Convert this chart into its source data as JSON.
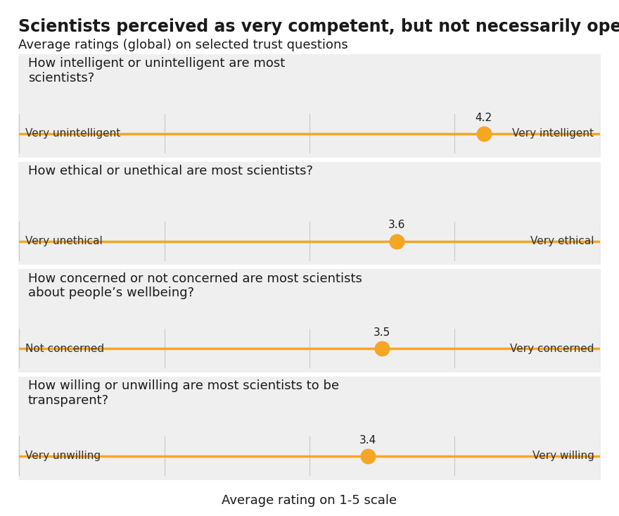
{
  "title": "Scientists perceived as very competent, but not necessarily open",
  "subtitle": "Average ratings (global) on selected trust questions",
  "xlabel": "Average rating on 1-5 scale",
  "questions": [
    {
      "question": "How intelligent or unintelligent are most\nscientists?",
      "left_label": "Very unintelligent",
      "right_label": "Very intelligent",
      "value": 4.2
    },
    {
      "question": "How ethical or unethical are most scientists?",
      "left_label": "Very unethical",
      "right_label": "Very ethical",
      "value": 3.6
    },
    {
      "question": "How concerned or not concerned are most scientists\nabout people’s wellbeing?",
      "left_label": "Not concerned",
      "right_label": "Very concerned",
      "value": 3.5
    },
    {
      "question": "How willing or unwilling are most scientists to be\ntransparent?",
      "left_label": "Very unwilling",
      "right_label": "Very willing",
      "value": 3.4
    }
  ],
  "x_min": 1,
  "x_max": 5,
  "line_color": "#F5A623",
  "dot_color": "#F5A623",
  "dot_size": 220,
  "panel_bg": "#EFEFEF",
  "white_bg": "#FFFFFF",
  "title_fontsize": 17,
  "subtitle_fontsize": 13,
  "question_fontsize": 13,
  "label_fontsize": 11,
  "value_fontsize": 11,
  "xlabel_fontsize": 13
}
